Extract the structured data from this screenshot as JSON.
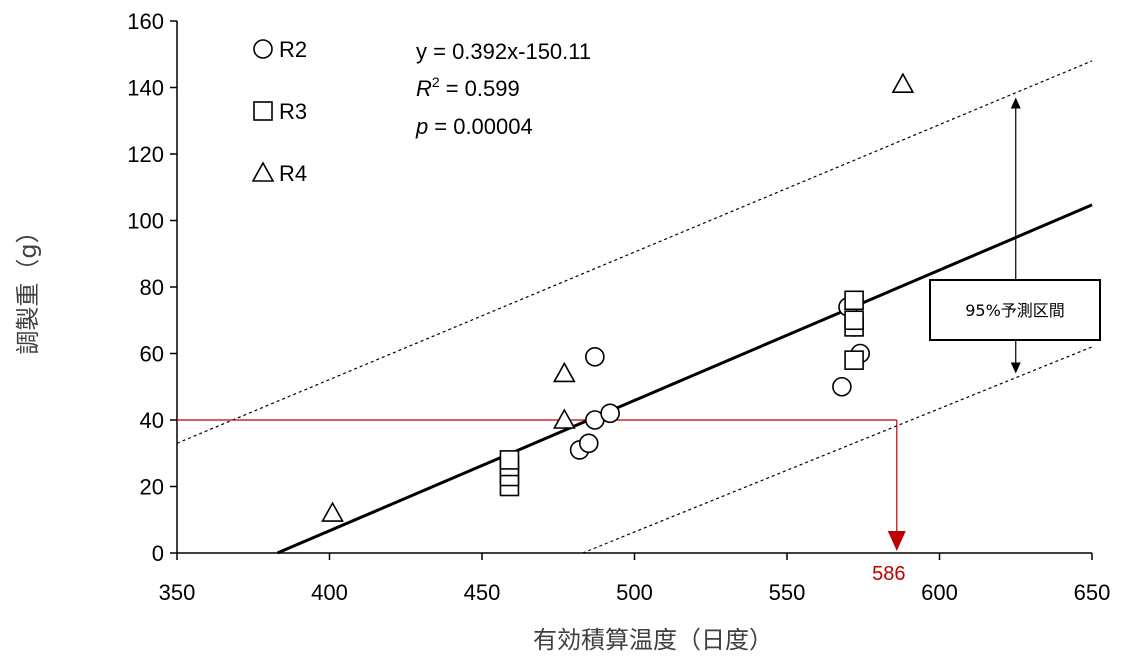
{
  "chart_data": {
    "type": "scatter",
    "xlabel": "有効積算温度（日度）",
    "ylabel": "調製重（g）",
    "xlim": [
      350,
      650
    ],
    "ylim": [
      0,
      160
    ],
    "x_ticks": [
      350,
      400,
      450,
      500,
      550,
      600,
      650
    ],
    "y_ticks": [
      0,
      20,
      40,
      60,
      80,
      100,
      120,
      140,
      160
    ],
    "grid": false,
    "legend_position": "top-left",
    "series": [
      {
        "name": "R2",
        "marker": "circle",
        "points": [
          {
            "x": 482,
            "y": 31
          },
          {
            "x": 485,
            "y": 33
          },
          {
            "x": 487,
            "y": 40
          },
          {
            "x": 487,
            "y": 59
          },
          {
            "x": 492,
            "y": 42
          },
          {
            "x": 568,
            "y": 50
          },
          {
            "x": 570,
            "y": 74
          },
          {
            "x": 572,
            "y": 68
          },
          {
            "x": 574,
            "y": 60
          }
        ]
      },
      {
        "name": "R3",
        "marker": "square",
        "points": [
          {
            "x": 459,
            "y": 20
          },
          {
            "x": 459,
            "y": 23
          },
          {
            "x": 459,
            "y": 26
          },
          {
            "x": 459,
            "y": 28
          },
          {
            "x": 572,
            "y": 58
          },
          {
            "x": 572,
            "y": 68
          },
          {
            "x": 572,
            "y": 70
          },
          {
            "x": 572,
            "y": 76
          }
        ]
      },
      {
        "name": "R4",
        "marker": "triangle",
        "points": [
          {
            "x": 401,
            "y": 12
          },
          {
            "x": 477,
            "y": 40
          },
          {
            "x": 477,
            "y": 54
          },
          {
            "x": 588,
            "y": 141
          }
        ]
      }
    ],
    "regression": {
      "slope": 0.392,
      "intercept": -150.11,
      "x_range": [
        383,
        650
      ],
      "equation": "y = 0.392x-150.11",
      "r2_label": "R",
      "r2_value": "= 0.599",
      "p_label": "p",
      "p_value": "= 0.00004"
    },
    "prediction_interval": {
      "upper": [
        {
          "x": 350,
          "y": 33
        },
        {
          "x": 650,
          "y": 148
        }
      ],
      "lower": [
        {
          "x": 483,
          "y": 0
        },
        {
          "x": 650,
          "y": 62
        }
      ],
      "label": "95%予測区間",
      "arrow_x": 625,
      "arrow_y": [
        54,
        137
      ]
    },
    "annotation": {
      "y": 40,
      "x": 586,
      "label": "586"
    },
    "colors": {
      "series": "#000000",
      "regression": "#000000",
      "interval": "#000000",
      "annotation": "#c00000"
    }
  }
}
